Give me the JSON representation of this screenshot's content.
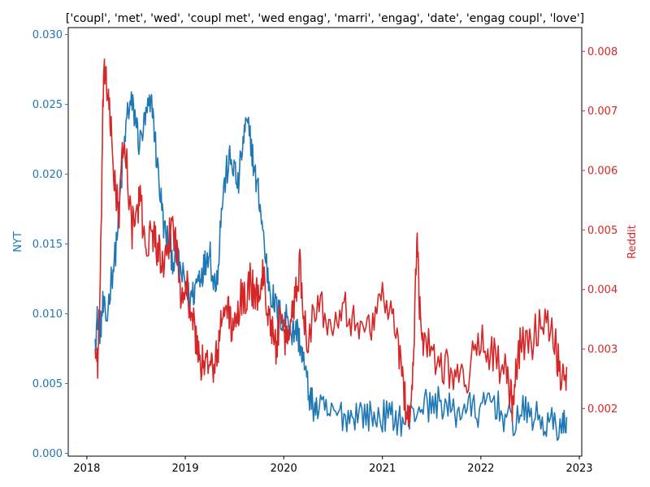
{
  "chart_data": {
    "type": "line",
    "title": "['coupl', 'met', 'wed', 'coupl met', 'wed engag', 'marri', 'engag', 'date', 'engag coupl', 'love']",
    "xlabel": "",
    "x_ticks": [
      "2018",
      "2019",
      "2020",
      "2021",
      "2022",
      "2023"
    ],
    "xlim": [
      "2017-10-24",
      "2023-01-10"
    ],
    "grid": false,
    "legend": "none",
    "axes": {
      "left": {
        "label": "NYT",
        "color": "#1f77b4",
        "ylim": [
          -0.0002,
          0.0305
        ],
        "ticks": [
          0.0,
          0.005,
          0.01,
          0.015,
          0.02,
          0.025,
          0.03
        ],
        "tick_labels": [
          "0.000",
          "0.005",
          "0.010",
          "0.015",
          "0.020",
          "0.025",
          "0.030"
        ]
      },
      "right": {
        "label": "Reddit",
        "color": "#d62728",
        "ylim": [
          0.0012,
          0.0084
        ],
        "ticks": [
          0.002,
          0.003,
          0.004,
          0.005,
          0.006,
          0.007,
          0.008
        ],
        "tick_labels": [
          "0.002",
          "0.003",
          "0.004",
          "0.005",
          "0.006",
          "0.007",
          "0.008"
        ]
      }
    },
    "series": [
      {
        "axis": "left",
        "color": "#1f77b4",
        "x": [
          "2018-02-01",
          "2018-02-10",
          "2018-02-20",
          "2018-03-01",
          "2018-03-15",
          "2018-04-01",
          "2018-04-15",
          "2018-05-01",
          "2018-05-15",
          "2018-06-01",
          "2018-06-15",
          "2018-07-01",
          "2018-07-15",
          "2018-08-01",
          "2018-08-15",
          "2018-09-01",
          "2018-09-15",
          "2018-10-01",
          "2018-10-15",
          "2018-11-01",
          "2018-11-15",
          "2018-12-01",
          "2018-12-15",
          "2019-01-01",
          "2019-01-15",
          "2019-02-01",
          "2019-02-15",
          "2019-03-01",
          "2019-03-15",
          "2019-04-01",
          "2019-04-15",
          "2019-05-01",
          "2019-05-15",
          "2019-06-01",
          "2019-06-15",
          "2019-07-01",
          "2019-07-15",
          "2019-08-01",
          "2019-08-15",
          "2019-09-01",
          "2019-09-15",
          "2019-10-01",
          "2019-10-15",
          "2019-11-01",
          "2019-11-15",
          "2019-12-01",
          "2019-12-15",
          "2020-01-01",
          "2020-01-15",
          "2020-02-01",
          "2020-02-15",
          "2020-03-01",
          "2020-03-15",
          "2020-04-01",
          "2020-04-15",
          "2020-05-01",
          "2020-06-01",
          "2020-07-01",
          "2020-08-01",
          "2020-09-01",
          "2020-10-01",
          "2020-11-01",
          "2020-12-01",
          "2021-01-01",
          "2021-02-01",
          "2021-03-01",
          "2021-04-01",
          "2021-05-01",
          "2021-06-01",
          "2021-07-01",
          "2021-08-01",
          "2021-09-01",
          "2021-10-01",
          "2021-11-01",
          "2021-12-01",
          "2022-01-01",
          "2022-02-01",
          "2022-03-01",
          "2022-04-01",
          "2022-05-01",
          "2022-06-01",
          "2022-07-01",
          "2022-08-01",
          "2022-09-01",
          "2022-10-01",
          "2022-11-01",
          "2022-11-15"
        ],
        "values": [
          0.0082,
          0.0098,
          0.0088,
          0.0105,
          0.0095,
          0.0125,
          0.014,
          0.0175,
          0.021,
          0.0245,
          0.025,
          0.024,
          0.022,
          0.0235,
          0.0245,
          0.025,
          0.0215,
          0.0185,
          0.016,
          0.015,
          0.014,
          0.014,
          0.013,
          0.012,
          0.011,
          0.0115,
          0.0125,
          0.013,
          0.0135,
          0.015,
          0.012,
          0.013,
          0.0175,
          0.02,
          0.021,
          0.0205,
          0.019,
          0.022,
          0.0235,
          0.0225,
          0.02,
          0.0185,
          0.016,
          0.013,
          0.0115,
          0.0105,
          0.01,
          0.0095,
          0.01,
          0.0085,
          0.009,
          0.008,
          0.0065,
          0.0045,
          0.0035,
          0.0032,
          0.003,
          0.0027,
          0.0028,
          0.0026,
          0.003,
          0.0028,
          0.0025,
          0.0027,
          0.0026,
          0.0025,
          0.0022,
          0.003,
          0.0036,
          0.0033,
          0.0038,
          0.0032,
          0.0028,
          0.0034,
          0.0032,
          0.0028,
          0.004,
          0.0035,
          0.0025,
          0.0022,
          0.003,
          0.0028,
          0.0025,
          0.002,
          0.0022,
          0.0018,
          0.0026
        ],
        "noise": 0.0012
      },
      {
        "axis": "right",
        "color": "#d62728",
        "x": [
          "2018-02-01",
          "2018-02-10",
          "2018-02-20",
          "2018-03-01",
          "2018-03-10",
          "2018-03-20",
          "2018-04-01",
          "2018-04-15",
          "2018-05-01",
          "2018-05-15",
          "2018-06-01",
          "2018-06-15",
          "2018-07-01",
          "2018-07-15",
          "2018-08-01",
          "2018-08-15",
          "2018-09-01",
          "2018-09-15",
          "2018-10-01",
          "2018-10-15",
          "2018-11-01",
          "2018-11-15",
          "2018-12-01",
          "2018-12-15",
          "2019-01-01",
          "2019-01-15",
          "2019-02-01",
          "2019-02-15",
          "2019-03-01",
          "2019-03-15",
          "2019-04-01",
          "2019-04-15",
          "2019-05-01",
          "2019-05-15",
          "2019-06-01",
          "2019-06-15",
          "2019-07-01",
          "2019-07-15",
          "2019-08-01",
          "2019-08-15",
          "2019-09-01",
          "2019-09-15",
          "2019-10-01",
          "2019-10-15",
          "2019-11-01",
          "2019-11-15",
          "2019-12-01",
          "2019-12-15",
          "2020-01-01",
          "2020-01-15",
          "2020-02-01",
          "2020-02-15",
          "2020-03-01",
          "2020-03-15",
          "2020-04-01",
          "2020-05-01",
          "2020-06-01",
          "2020-07-01",
          "2020-08-01",
          "2020-09-01",
          "2020-10-01",
          "2020-11-01",
          "2020-12-01",
          "2021-01-01",
          "2021-02-01",
          "2021-03-01",
          "2021-03-20",
          "2021-04-05",
          "2021-04-20",
          "2021-05-01",
          "2021-05-10",
          "2021-05-20",
          "2021-06-01",
          "2021-07-01",
          "2021-08-01",
          "2021-09-01",
          "2021-10-01",
          "2021-11-01",
          "2021-12-01",
          "2022-01-01",
          "2022-02-01",
          "2022-03-01",
          "2022-04-01",
          "2022-04-20",
          "2022-05-01",
          "2022-05-15",
          "2022-06-01",
          "2022-07-01",
          "2022-08-01",
          "2022-09-01",
          "2022-10-01",
          "2022-10-15",
          "2022-11-01",
          "2022-11-15"
        ],
        "values": [
          0.003,
          0.0028,
          0.004,
          0.007,
          0.0078,
          0.0072,
          0.0066,
          0.0058,
          0.0052,
          0.0065,
          0.006,
          0.005,
          0.0052,
          0.0055,
          0.005,
          0.0047,
          0.005,
          0.0048,
          0.0045,
          0.0042,
          0.0048,
          0.0052,
          0.0046,
          0.004,
          0.0042,
          0.0038,
          0.0034,
          0.003,
          0.0028,
          0.0026,
          0.003,
          0.0025,
          0.003,
          0.0034,
          0.0038,
          0.0035,
          0.0033,
          0.0035,
          0.004,
          0.0038,
          0.0042,
          0.0038,
          0.004,
          0.0042,
          0.0038,
          0.0034,
          0.003,
          0.0034,
          0.0032,
          0.0032,
          0.0036,
          0.004,
          0.0044,
          0.0036,
          0.0032,
          0.0038,
          0.0036,
          0.0035,
          0.0038,
          0.0036,
          0.0032,
          0.0036,
          0.0034,
          0.004,
          0.0036,
          0.003,
          0.0024,
          0.0018,
          0.0022,
          0.0035,
          0.005,
          0.0036,
          0.0032,
          0.003,
          0.0028,
          0.0027,
          0.0026,
          0.0024,
          0.0028,
          0.0032,
          0.003,
          0.0028,
          0.0026,
          0.0022,
          0.002,
          0.0028,
          0.0032,
          0.003,
          0.0034,
          0.0036,
          0.0032,
          0.0028,
          0.0024,
          0.0027
        ],
        "noise": 0.00035
      }
    ]
  }
}
